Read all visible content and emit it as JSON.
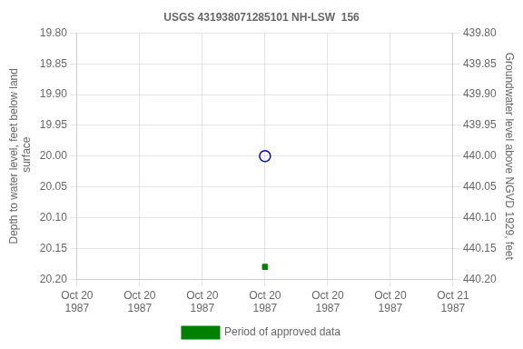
{
  "chart_data": {
    "type": "line",
    "title": "USGS 431938071285101 NH-LSW  156",
    "ylabel": "Depth to water level, feet below land\n surface",
    "y2label": "Groundwater level above NGVD 1929, feet",
    "categories": [
      "Oct 20\n1987",
      "Oct 20\n1987",
      "Oct 20\n1987",
      "Oct 20\n1987",
      "Oct 20\n1987",
      "Oct 20\n1987",
      "Oct 21\n1987"
    ],
    "series": [
      {
        "color": "#0000cc",
        "marker": "open-circle",
        "line_style": "none",
        "values": [
          null,
          null,
          null,
          20.0,
          null,
          null,
          null
        ]
      },
      {
        "name": "Period of approved data",
        "color": "#008000",
        "marker": "square",
        "line_style": "none",
        "values": [
          null,
          null,
          null,
          20.18,
          null,
          null,
          null
        ]
      }
    ],
    "ylim": [
      20.2,
      19.8
    ],
    "yticks": [
      {
        "value": 19.8,
        "label": "19.80"
      },
      19.85,
      {
        "value": 19.9,
        "label": "19.90"
      },
      19.95,
      {
        "value": 20.0,
        "label": "20.00"
      },
      20.05,
      {
        "value": 20.1,
        "label": "20.10"
      },
      20.15,
      {
        "value": 20.2,
        "label": "20.20"
      }
    ],
    "y2lim": [
      440.2,
      439.8
    ],
    "y2ticks": [
      {
        "value": 440.2,
        "label": "440.20"
      },
      440.15,
      {
        "value": 440.1,
        "label": "440.10"
      },
      440.05,
      {
        "value": 440.0,
        "label": "440.00"
      },
      439.95,
      {
        "value": 439.9,
        "label": "439.90"
      },
      439.85,
      {
        "value": 439.8,
        "label": "439.80"
      }
    ],
    "grid": true,
    "legend": "bottom"
  }
}
